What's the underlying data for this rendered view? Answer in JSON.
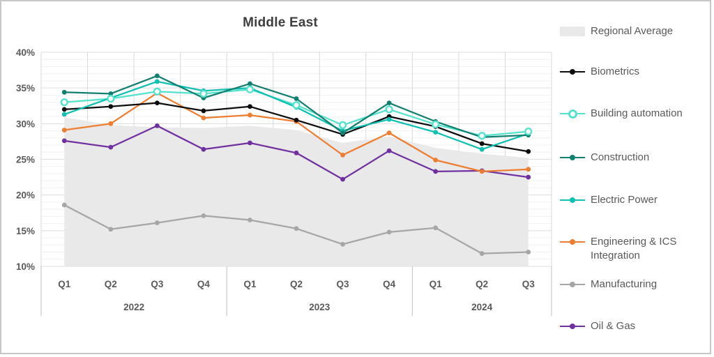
{
  "title": "Middle East",
  "chart_data": {
    "type": "line",
    "title": "Middle East",
    "legend_position": "right",
    "grid": {
      "horizontal_minor": true,
      "horizontal_major": true,
      "vertical_major": true
    },
    "categories": [
      "Q1",
      "Q2",
      "Q3",
      "Q4",
      "Q1",
      "Q2",
      "Q3",
      "Q4",
      "Q1",
      "Q2",
      "Q3"
    ],
    "year_groups": [
      {
        "label": "2022",
        "span": 4
      },
      {
        "label": "2023",
        "span": 4
      },
      {
        "label": "2024",
        "span": 3
      }
    ],
    "y_axis": {
      "min": 10,
      "max": 40,
      "major_step": 5,
      "minor_step": 1,
      "tick_labels": [
        "10%",
        "15%",
        "20%",
        "25%",
        "30%",
        "35%",
        "40%"
      ],
      "format": "percent"
    },
    "series": [
      {
        "name": "Regional Average",
        "type": "area",
        "color": "#e9e9e9",
        "marker": "none",
        "values": [
          30.9,
          29.8,
          29.5,
          29.4,
          29.7,
          29.1,
          27.3,
          28.2,
          26.6,
          25.8,
          25.2
        ]
      },
      {
        "name": "Biometrics",
        "type": "line",
        "color": "#0d0d0d",
        "marker": "filled",
        "values": [
          32.0,
          32.4,
          32.9,
          31.8,
          32.4,
          30.5,
          28.5,
          31.0,
          29.6,
          27.2,
          26.1
        ]
      },
      {
        "name": "Building automation",
        "type": "line",
        "color": "#55e2cd",
        "marker": "open",
        "values": [
          33.0,
          33.5,
          34.5,
          34.2,
          34.8,
          32.6,
          29.8,
          32.0,
          29.9,
          28.3,
          28.9
        ]
      },
      {
        "name": "Construction",
        "type": "line",
        "color": "#128070",
        "marker": "filled",
        "values": [
          34.4,
          34.2,
          36.7,
          33.6,
          35.6,
          33.5,
          28.7,
          32.9,
          30.3,
          28.1,
          28.4
        ]
      },
      {
        "name": "Electric Power",
        "type": "line",
        "color": "#0ec0b2",
        "marker": "filled",
        "values": [
          31.3,
          33.6,
          35.9,
          34.6,
          35.0,
          32.3,
          29.0,
          30.6,
          28.8,
          26.4,
          28.6
        ]
      },
      {
        "name": "Engineering & ICS Integration",
        "type": "line",
        "color": "#ed7d31",
        "marker": "filled",
        "values": [
          29.1,
          30.0,
          34.3,
          30.8,
          31.2,
          30.3,
          25.6,
          28.7,
          24.9,
          23.3,
          23.6
        ]
      },
      {
        "name": "Manufacturing",
        "type": "line",
        "color": "#a6a6a6",
        "marker": "filled",
        "values": [
          18.6,
          15.2,
          16.1,
          17.1,
          16.5,
          15.3,
          13.1,
          14.8,
          15.4,
          11.8,
          12.0
        ]
      },
      {
        "name": "Oil & Gas",
        "type": "line",
        "color": "#7030a0",
        "marker": "filled",
        "values": [
          27.6,
          26.7,
          29.7,
          26.4,
          27.3,
          25.9,
          22.2,
          26.2,
          23.3,
          23.4,
          22.5
        ]
      }
    ],
    "style_colors": {
      "title_text": "#3f3f3f",
      "axis_text": "#595959",
      "grid_minor": "#f1f1f1",
      "grid_major": "#dcdcdc",
      "grid_vertical": "#d9d9d9",
      "axis_separator": "#bfbfbf",
      "frame_border": "#c6c6c6"
    }
  }
}
